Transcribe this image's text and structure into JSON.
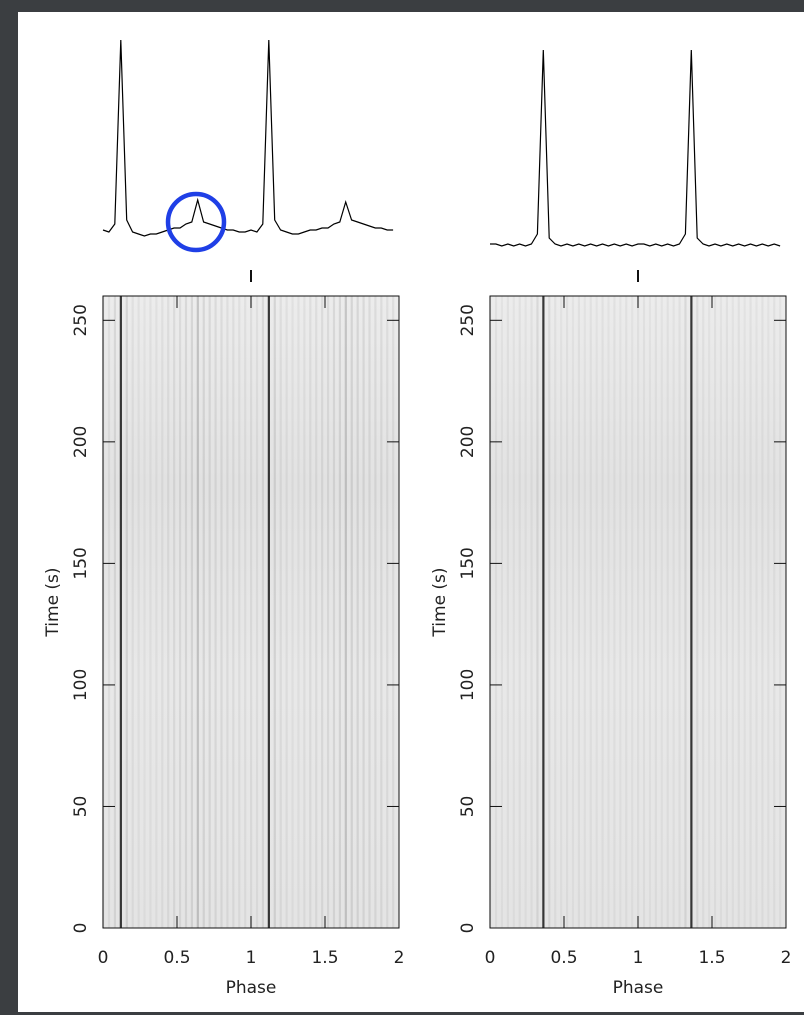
{
  "chart_data": [
    {
      "type": "phase-time",
      "xlabel": "Phase",
      "ylabel": "Time (s)",
      "xlim": [
        0,
        2
      ],
      "ylim": [
        0,
        260
      ],
      "xticks": [
        0,
        0.5,
        1,
        1.5,
        2
      ],
      "yticks": [
        0,
        50,
        100,
        150,
        200,
        250
      ],
      "color": "#000000",
      "x": [
        0,
        0.04,
        0.08,
        0.12,
        0.16,
        0.2,
        0.24,
        0.28,
        0.32,
        0.36,
        0.4,
        0.44,
        0.48,
        0.52,
        0.56,
        0.6,
        0.64,
        0.68,
        0.72,
        0.76,
        0.8,
        0.84,
        0.88,
        0.92,
        0.96,
        1,
        1.04,
        1.08,
        1.12,
        1.16,
        1.2,
        1.24,
        1.28,
        1.32,
        1.36,
        1.4,
        1.44,
        1.48,
        1.52,
        1.56,
        1.6,
        1.64,
        1.68,
        1.72,
        1.76,
        1.8,
        1.84,
        1.88,
        1.92,
        1.96
      ],
      "values": [
        5,
        4,
        8,
        100,
        10,
        4,
        3,
        2,
        3,
        3,
        4,
        5,
        6,
        6,
        8,
        9,
        20,
        9,
        8,
        7,
        6,
        5,
        5,
        4,
        4,
        5,
        4,
        8,
        100,
        10,
        5,
        4,
        3,
        3,
        4,
        5,
        5,
        6,
        6,
        8,
        9,
        19,
        10,
        9,
        8,
        7,
        6,
        6,
        5,
        5
      ]
    },
    {
      "type": "phase-time",
      "xlabel": "Phase",
      "ylabel": "Time (s)",
      "xlim": [
        0,
        2
      ],
      "ylim": [
        0,
        260
      ],
      "xticks": [
        0,
        0.5,
        1,
        1.5,
        2
      ],
      "yticks": [
        0,
        50,
        100,
        150,
        200,
        250
      ],
      "color": "#000000",
      "x": [
        0,
        0.04,
        0.08,
        0.12,
        0.16,
        0.2,
        0.24,
        0.28,
        0.32,
        0.36,
        0.4,
        0.44,
        0.48,
        0.52,
        0.56,
        0.6,
        0.64,
        0.68,
        0.72,
        0.76,
        0.8,
        0.84,
        0.88,
        0.92,
        0.96,
        1,
        1.04,
        1.08,
        1.12,
        1.16,
        1.2,
        1.24,
        1.28,
        1.32,
        1.36,
        1.4,
        1.44,
        1.48,
        1.52,
        1.56,
        1.6,
        1.64,
        1.68,
        1.72,
        1.76,
        1.8,
        1.84,
        1.88,
        1.92,
        1.96
      ],
      "values": [
        3,
        3,
        2,
        3,
        2,
        3,
        2,
        3,
        8,
        100,
        6,
        3,
        2,
        3,
        2,
        3,
        2,
        3,
        2,
        3,
        2,
        3,
        2,
        3,
        2,
        3,
        3,
        2,
        3,
        2,
        3,
        2,
        3,
        8,
        100,
        6,
        3,
        2,
        3,
        2,
        3,
        2,
        3,
        2,
        3,
        2,
        3,
        2,
        3,
        2
      ]
    }
  ]
}
